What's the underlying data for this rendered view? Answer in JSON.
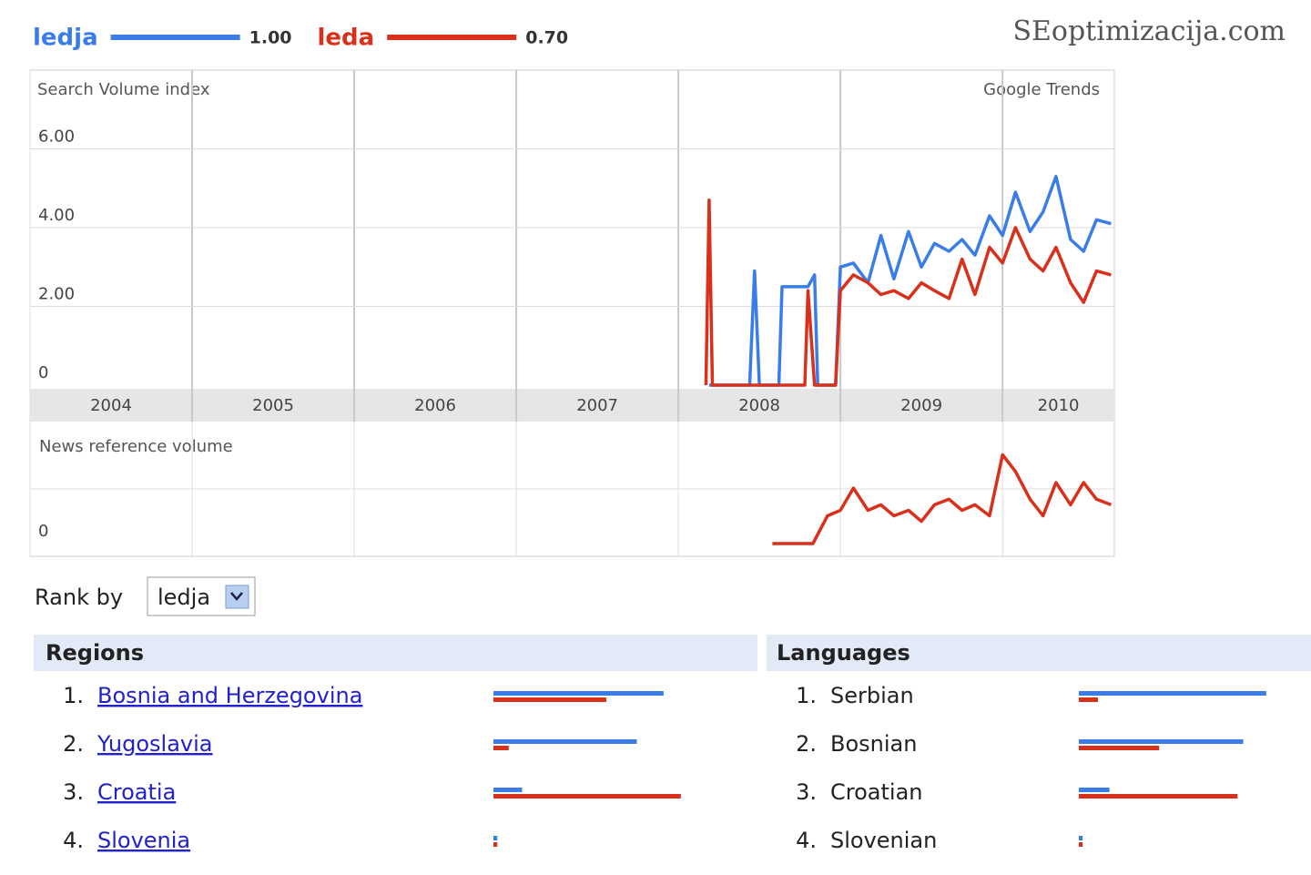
{
  "header": {
    "watermark": "SEoptimizacija.com"
  },
  "chart_data": [
    {
      "type": "line",
      "title": "Search Volume index",
      "annotation": "Google Trends",
      "xlim": [
        2004,
        2010.69
      ],
      "xticks": [
        {
          "value": 2004,
          "label": "2004"
        },
        {
          "value": 2005,
          "label": "2005"
        },
        {
          "value": 2006,
          "label": "2006"
        },
        {
          "value": 2007,
          "label": "2007"
        },
        {
          "value": 2008,
          "label": "2008"
        },
        {
          "value": 2009,
          "label": "2009"
        },
        {
          "value": 2010,
          "label": "2010"
        }
      ],
      "ylim": [
        0,
        8
      ],
      "yticks": [
        0,
        {
          "value": 2,
          "label": "2.00"
        },
        {
          "value": 4,
          "label": "4.00"
        },
        {
          "value": 6,
          "label": "6.00"
        }
      ],
      "grid": true,
      "series": [
        {
          "name": "ledja",
          "scale": "1.00",
          "color": "#3b7de8",
          "x": [
            2008.19,
            2008.44,
            2008.47,
            2008.5,
            2008.62,
            2008.64,
            2008.8,
            2008.84,
            2008.86,
            2008.97,
            2009.0,
            2009.08,
            2009.17,
            2009.25,
            2009.33,
            2009.42,
            2009.5,
            2009.58,
            2009.67,
            2009.75,
            2009.83,
            2009.92,
            2010.0,
            2010.08,
            2010.17,
            2010.25,
            2010.33,
            2010.42,
            2010.5,
            2010.58,
            2010.67
          ],
          "values": [
            0,
            0,
            2.9,
            0,
            0,
            2.5,
            2.5,
            2.8,
            0,
            0,
            3.0,
            3.1,
            2.6,
            3.8,
            2.7,
            3.9,
            3.0,
            3.6,
            3.4,
            3.7,
            3.3,
            4.3,
            3.8,
            4.9,
            3.9,
            4.4,
            5.3,
            3.7,
            3.4,
            4.2,
            4.1
          ]
        },
        {
          "name": "leda",
          "scale": "0.70",
          "color": "#d8301a",
          "x": [
            2008.17,
            2008.19,
            2008.21,
            2008.78,
            2008.8,
            2008.84,
            2008.97,
            2009.0,
            2009.08,
            2009.17,
            2009.25,
            2009.33,
            2009.42,
            2009.5,
            2009.58,
            2009.67,
            2009.75,
            2009.83,
            2009.92,
            2010.0,
            2010.08,
            2010.17,
            2010.25,
            2010.33,
            2010.42,
            2010.5,
            2010.58,
            2010.67
          ],
          "values": [
            0,
            4.7,
            0,
            0,
            2.4,
            0,
            0,
            2.4,
            2.8,
            2.6,
            2.3,
            2.4,
            2.2,
            2.6,
            2.4,
            2.2,
            3.2,
            2.3,
            3.5,
            3.1,
            4.0,
            3.2,
            2.9,
            3.5,
            2.6,
            2.1,
            2.9,
            2.8
          ]
        }
      ]
    },
    {
      "type": "line",
      "title": "News reference volume",
      "xlim": [
        2004,
        2010.69
      ],
      "ylim": [
        0,
        2.2
      ],
      "yticks": [
        0
      ],
      "grid": true,
      "series": [
        {
          "color": "#d8301a",
          "x": [
            2008.58,
            2008.83,
            2008.92,
            2009.0,
            2009.08,
            2009.17,
            2009.25,
            2009.33,
            2009.42,
            2009.5,
            2009.58,
            2009.67,
            2009.75,
            2009.83,
            2009.92,
            2010.0,
            2010.08,
            2010.17,
            2010.25,
            2010.33,
            2010.42,
            2010.5,
            2010.58,
            2010.67
          ],
          "values": [
            0,
            0,
            0.5,
            0.6,
            1.0,
            0.6,
            0.7,
            0.5,
            0.6,
            0.4,
            0.7,
            0.8,
            0.6,
            0.7,
            0.5,
            1.6,
            1.3,
            0.8,
            0.5,
            1.1,
            0.7,
            1.1,
            0.8,
            0.7
          ]
        }
      ]
    }
  ],
  "rank_by": {
    "label": "Rank by",
    "selected": "ledja"
  },
  "regions": {
    "title": "Regions",
    "rows": [
      {
        "rank": "1.",
        "name": "Bosnia and Herzegovina",
        "values": [
          89,
          59
        ]
      },
      {
        "rank": "2.",
        "name": "Yugoslavia",
        "values": [
          75,
          8
        ]
      },
      {
        "rank": "3.",
        "name": "Croatia",
        "values": [
          15,
          98
        ]
      },
      {
        "rank": "4.",
        "name": "Slovenia",
        "values": [
          2,
          2
        ]
      }
    ]
  },
  "languages": {
    "title": "Languages",
    "rows": [
      {
        "rank": "1.",
        "name": "Serbian",
        "values": [
          98,
          10
        ]
      },
      {
        "rank": "2.",
        "name": "Bosnian",
        "values": [
          86,
          42
        ]
      },
      {
        "rank": "3.",
        "name": "Croatian",
        "values": [
          16,
          83
        ]
      },
      {
        "rank": "4.",
        "name": "Slovenian",
        "values": [
          2,
          2
        ]
      }
    ]
  }
}
